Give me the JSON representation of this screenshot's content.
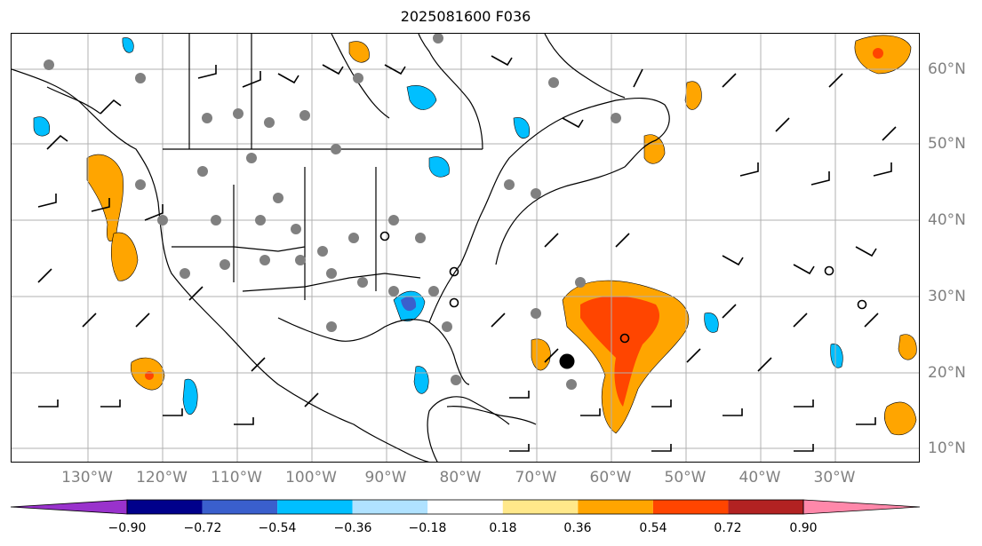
{
  "title": "2025081600 F036",
  "lon_labels": [
    "130°W",
    "120°W",
    "110°W",
    "100°W",
    "90°W",
    "80°W",
    "70°W",
    "60°W",
    "50°W",
    "40°W",
    "30°W"
  ],
  "lat_labels": [
    "60°N",
    "50°N",
    "40°N",
    "30°N",
    "20°N",
    "10°N"
  ],
  "colorbar": {
    "ticks": [
      "−0.90",
      "−0.72",
      "−0.54",
      "−0.36",
      "−0.18",
      "0.18",
      "0.36",
      "0.54",
      "0.72",
      "0.90"
    ],
    "colors": [
      "#9932CC",
      "#00008B",
      "#3A5FCD",
      "#00BFFF",
      "#B0E2FF",
      "#FFFFFF",
      "#FFE88A",
      "#FFA500",
      "#FF4500",
      "#B22222",
      "#FF88AA"
    ]
  },
  "colors": {
    "gridline": "#b0b0b0",
    "coastline": "#000000",
    "obs_dot": "#808080",
    "wind_barb": "#000000"
  }
}
